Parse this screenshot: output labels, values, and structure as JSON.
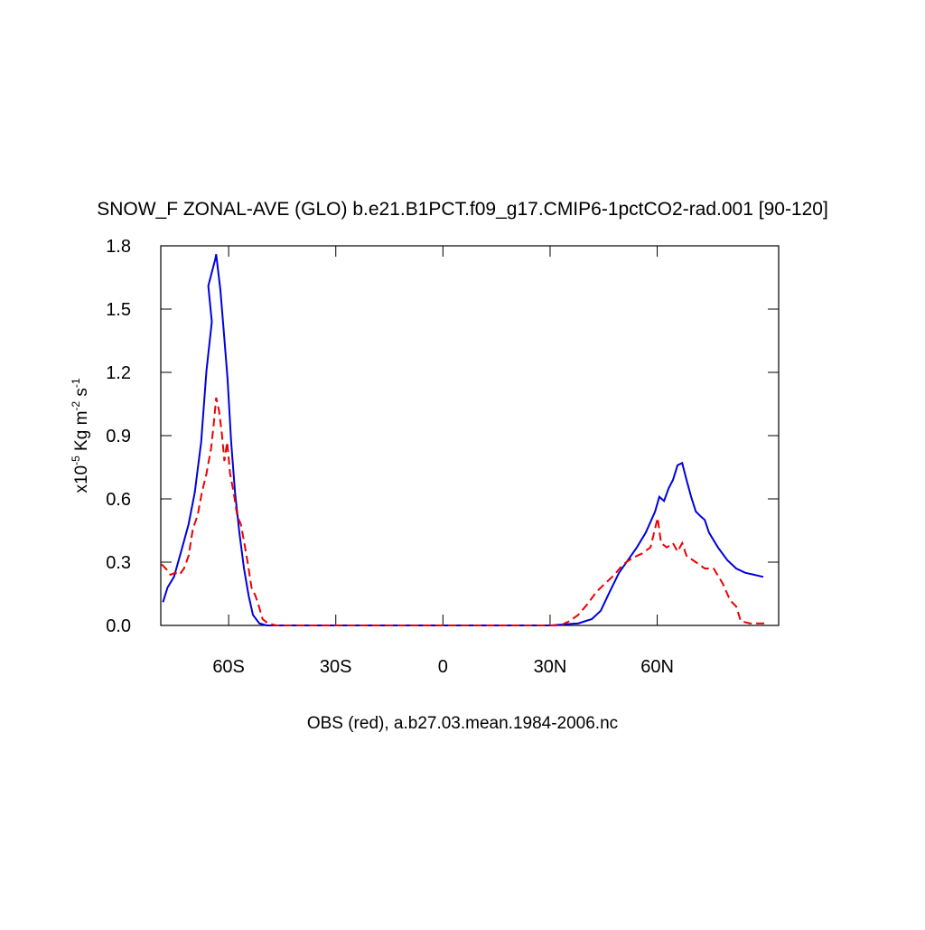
{
  "chart_data": {
    "type": "line",
    "title": "SNOW_F ZONAL-AVE (GLO) b.e21.B1PCT.f09_g17.CMIP6-1pctCO2-rad.001 [90-120]",
    "x_label": "OBS (red), a.b27.03.mean.1984-2006.nc",
    "y_label": [
      "x10",
      "-5",
      " Kg m",
      "-2",
      " s",
      "-1"
    ],
    "xlim": [
      -79,
      94
    ],
    "xticks": [
      {
        "value": -60,
        "label": "60S"
      },
      {
        "value": -30,
        "label": "30S"
      },
      0,
      {
        "value": 30,
        "label": "30N"
      },
      {
        "value": 60,
        "label": "60N"
      }
    ],
    "ylim": [
      0,
      1.8
    ],
    "yticks": [
      {
        "value": 0,
        "label": "0.0"
      },
      0.3,
      0.6,
      0.9,
      1.2,
      1.5,
      1.8
    ],
    "series": [
      {
        "color": "#0000dd",
        "dash": false,
        "x": [
          -78.4,
          -77.1,
          -75.3,
          -73.3,
          -71.2,
          -69.5,
          -67.7,
          -66.2,
          -64.7,
          -65.7,
          -63.7,
          -63.5,
          -62.3,
          -61.3,
          -60.3,
          -59.3,
          -58.2,
          -57,
          -55.7,
          -54.4,
          -53.2,
          -51.4,
          -49.4,
          -45,
          0,
          30.3,
          37.9,
          41.7,
          44.2,
          46.7,
          49.3,
          51.8,
          54.3,
          56.8,
          59.4,
          60.6,
          61.9,
          63.2,
          64.4,
          65.7,
          67,
          68.2,
          69.5,
          70.8,
          72,
          73.3,
          74.5,
          77,
          79.6,
          82.1,
          84.6,
          87.2,
          89.7
        ],
        "values": [
          0.11,
          0.18,
          0.23,
          0.35,
          0.48,
          0.63,
          0.87,
          1.21,
          1.44,
          1.61,
          1.74,
          1.76,
          1.59,
          1.38,
          1.17,
          0.87,
          0.63,
          0.44,
          0.27,
          0.14,
          0.05,
          0.01,
          0,
          0,
          0,
          0,
          0.01,
          0.03,
          0.07,
          0.16,
          0.25,
          0.31,
          0.37,
          0.44,
          0.54,
          0.61,
          0.59,
          0.65,
          0.69,
          0.76,
          0.77,
          0.69,
          0.61,
          0.54,
          0.52,
          0.5,
          0.44,
          0.37,
          0.31,
          0.27,
          0.25,
          0.24,
          0.23
        ]
      },
      {
        "color": "#ee0000",
        "dash": true,
        "x": [
          -78.8,
          -77.6,
          -76.3,
          -75,
          -73.8,
          -72.5,
          -71.2,
          -70,
          -68.7,
          -67.5,
          -66.2,
          -64.9,
          -64.2,
          -63.5,
          -62.7,
          -61.9,
          -61.2,
          -60.4,
          -59.6,
          -58.6,
          -57.6,
          -56.6,
          -55.6,
          -54.6,
          -53.6,
          -52.5,
          -51.5,
          -50.5,
          -49,
          -46.7,
          0,
          32.8,
          35.4,
          37.9,
          40.4,
          43,
          45.5,
          48,
          50.5,
          53.1,
          55.6,
          58.1,
          59.4,
          60.1,
          61.1,
          62.7,
          64.4,
          65.7,
          67,
          68.2,
          70.8,
          73.3,
          75.8,
          78.3,
          80.4,
          82.1,
          83.4,
          85.9,
          90.5
        ],
        "values": [
          0.29,
          0.27,
          0.24,
          0.25,
          0.24,
          0.27,
          0.33,
          0.46,
          0.52,
          0.63,
          0.72,
          0.84,
          0.95,
          1.08,
          1.02,
          0.91,
          0.78,
          0.87,
          0.72,
          0.63,
          0.52,
          0.48,
          0.39,
          0.29,
          0.18,
          0.14,
          0.09,
          0.03,
          0.01,
          0,
          0,
          0,
          0.02,
          0.05,
          0.1,
          0.16,
          0.2,
          0.24,
          0.29,
          0.32,
          0.34,
          0.37,
          0.46,
          0.51,
          0.39,
          0.37,
          0.39,
          0.35,
          0.39,
          0.33,
          0.3,
          0.27,
          0.27,
          0.2,
          0.12,
          0.09,
          0.02,
          0.01,
          0.01
        ]
      }
    ]
  }
}
